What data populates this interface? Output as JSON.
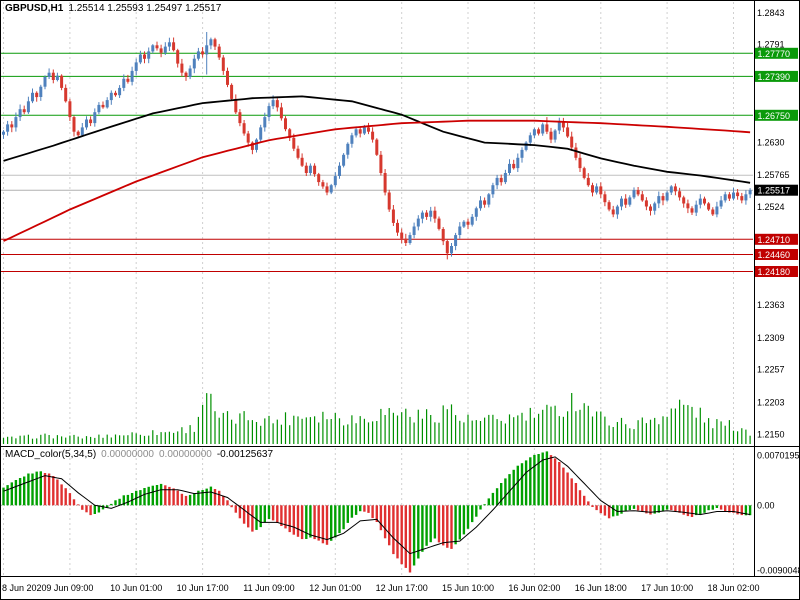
{
  "title": {
    "symbol": "GBPUSD,H1",
    "ohlc": "1.25514 1.25593 1.25497 1.25517"
  },
  "indicator": {
    "name": "MACD_color(5,34,5)",
    "values": [
      "0.00000000",
      "0.00000000",
      "-0.00125637"
    ]
  },
  "colors": {
    "up": "#4f81bd",
    "down": "#d6382e",
    "ma_fast": "#000000",
    "ma_slow": "#cc0000",
    "level_green": "#0a9a0a",
    "level_red": "#c00000",
    "bid_box": "#000000",
    "silver_line": "#c0c0c0",
    "current_line": "#b0b0b0",
    "volume": "#009000",
    "macd_up": "#00a000",
    "macd_down": "#e03030",
    "signal": "#000000",
    "grid": "#d0d0d0",
    "axis_text": "#000000"
  },
  "chart_data": {
    "type": "candlestick",
    "symbol": "GBPUSD",
    "timeframe": "H1",
    "title": "GBPUSD,H1 1.25514 1.25593 1.25497 1.25517",
    "legend_position": "top-left",
    "grid": "vertical-dashed",
    "x_axis": {
      "labels": [
        "8 Jun 2020",
        "9 Jun 09:00",
        "10 Jun 01:00",
        "10 Jun 17:00",
        "11 Jun 09:00",
        "12 Jun 01:00",
        "12 Jun 17:00",
        "15 Jun 10:00",
        "16 Jun 02:00",
        "16 Jun 18:00",
        "17 Jun 10:00",
        "18 Jun 02:00"
      ],
      "grid_indices": [
        0,
        16,
        32,
        48,
        64,
        80,
        96,
        112,
        128,
        144,
        160,
        176
      ]
    },
    "y_axis": {
      "range": [
        1.2136,
        1.2858
      ],
      "labels": [
        {
          "text": "1.2843",
          "price": 1.2843
        },
        {
          "text": "1.2791",
          "price": 1.2791
        },
        {
          "text": "1.2630",
          "price": 1.263
        },
        {
          "text": "1.25765",
          "price": 1.25765
        },
        {
          "text": "1.2524",
          "price": 1.2524
        },
        {
          "text": "1.2363",
          "price": 1.2363
        },
        {
          "text": "1.2309",
          "price": 1.2309
        },
        {
          "text": "1.2257",
          "price": 1.2257
        },
        {
          "text": "1.2203",
          "price": 1.2203
        },
        {
          "text": "1.2150",
          "price": 1.215
        }
      ]
    },
    "price_levels": {
      "green": [
        {
          "price": 1.2777,
          "label": "1.27770"
        },
        {
          "price": 1.2739,
          "label": "1.27390"
        },
        {
          "price": 1.2675,
          "label": "1.26750"
        }
      ],
      "red": [
        {
          "price": 1.2471,
          "label": "1.24710"
        },
        {
          "price": 1.2446,
          "label": "1.24460"
        },
        {
          "price": 1.2418,
          "label": "1.24180"
        }
      ],
      "bid": {
        "price": 1.25517,
        "label": "1.25517"
      },
      "silver": {
        "price": 1.25765,
        "label": "1.25765"
      }
    },
    "closes": [
      1.2648,
      1.266,
      1.2655,
      1.2672,
      1.2685,
      1.268,
      1.2698,
      1.2712,
      1.2705,
      1.2722,
      1.2738,
      1.2745,
      1.2733,
      1.274,
      1.272,
      1.2698,
      1.2672,
      1.2648,
      1.2642,
      1.2655,
      1.2668,
      1.2662,
      1.268,
      1.2692,
      1.2688,
      1.27,
      1.2712,
      1.2708,
      1.272,
      1.2735,
      1.273,
      1.2748,
      1.2762,
      1.2775,
      1.2768,
      1.278,
      1.279,
      1.2785,
      1.2778,
      1.2788,
      1.2795,
      1.2782,
      1.276,
      1.2745,
      1.2738,
      1.2752,
      1.2768,
      1.278,
      1.2775,
      1.279,
      1.28,
      1.2788,
      1.277,
      1.2748,
      1.2725,
      1.2702,
      1.268,
      1.2662,
      1.2645,
      1.263,
      1.2618,
      1.2635,
      1.2655,
      1.2672,
      1.269,
      1.27,
      1.2688,
      1.267,
      1.2652,
      1.2638,
      1.262,
      1.2605,
      1.2592,
      1.258,
      1.2592,
      1.2578,
      1.2565,
      1.2558,
      1.2548,
      1.256,
      1.2575,
      1.2592,
      1.261,
      1.2628,
      1.2642,
      1.2652,
      1.2645,
      1.2655,
      1.2648,
      1.2635,
      1.261,
      1.258,
      1.2548,
      1.252,
      1.2498,
      1.2482,
      1.2472,
      1.2465,
      1.2478,
      1.2492,
      1.2505,
      1.2515,
      1.2508,
      1.2518,
      1.2505,
      1.2488,
      1.2468,
      1.2448,
      1.246,
      1.2478,
      1.2492,
      1.25,
      1.2495,
      1.2508,
      1.2522,
      1.2535,
      1.2528,
      1.2545,
      1.256,
      1.2572,
      1.2565,
      1.258,
      1.2595,
      1.2588,
      1.2605,
      1.2618,
      1.263,
      1.2642,
      1.2652,
      1.2645,
      1.266,
      1.2648,
      1.2635,
      1.265,
      1.2665,
      1.2655,
      1.264,
      1.2622,
      1.2605,
      1.2588,
      1.2572,
      1.256,
      1.2548,
      1.2558,
      1.2545,
      1.2532,
      1.252,
      1.2512,
      1.2525,
      1.2538,
      1.2528,
      1.254,
      1.2552,
      1.2545,
      1.2535,
      1.2525,
      1.2518,
      1.253,
      1.2542,
      1.2535,
      1.2548,
      1.2558,
      1.255,
      1.254,
      1.253,
      1.2522,
      1.2515,
      1.2528,
      1.2538,
      1.253,
      1.252,
      1.2512,
      1.2525,
      1.2535,
      1.2545,
      1.2538,
      1.2548,
      1.2542,
      1.2535,
      1.2545,
      1.25517
    ],
    "wick_overrides": [
      [
        49,
        1.2812,
        1.2742
      ],
      [
        97,
        1.248,
        1.246
      ],
      [
        107,
        1.247,
        1.2438
      ],
      [
        131,
        1.2672,
        1.2644
      ]
    ],
    "ma_black": [
      [
        0,
        1.26
      ],
      [
        12,
        1.2625
      ],
      [
        24,
        1.2652
      ],
      [
        36,
        1.2678
      ],
      [
        48,
        1.2695
      ],
      [
        60,
        1.2703
      ],
      [
        72,
        1.2706
      ],
      [
        84,
        1.2698
      ],
      [
        96,
        1.2676
      ],
      [
        106,
        1.2648
      ],
      [
        116,
        1.263
      ],
      [
        128,
        1.2626
      ],
      [
        136,
        1.262
      ],
      [
        144,
        1.2604
      ],
      [
        152,
        1.2592
      ],
      [
        160,
        1.2582
      ],
      [
        168,
        1.2576
      ],
      [
        176,
        1.2568
      ],
      [
        180,
        1.2564
      ]
    ],
    "ma_red": [
      [
        0,
        1.2468
      ],
      [
        16,
        1.252
      ],
      [
        32,
        1.2566
      ],
      [
        48,
        1.2606
      ],
      [
        64,
        1.2634
      ],
      [
        80,
        1.2652
      ],
      [
        96,
        1.2662
      ],
      [
        112,
        1.2666
      ],
      [
        128,
        1.2666
      ],
      [
        144,
        1.2662
      ],
      [
        160,
        1.2656
      ],
      [
        176,
        1.2649
      ],
      [
        180,
        1.2647
      ]
    ],
    "volumes": [
      [
        0,
        0.1
      ],
      [
        10,
        0.15
      ],
      [
        20,
        0.12
      ],
      [
        30,
        0.18
      ],
      [
        40,
        0.22
      ],
      [
        46,
        0.3
      ],
      [
        49,
        1.0
      ],
      [
        51,
        0.5
      ],
      [
        55,
        0.45
      ],
      [
        60,
        0.5
      ],
      [
        65,
        0.42
      ],
      [
        70,
        0.5
      ],
      [
        75,
        0.55
      ],
      [
        80,
        0.5
      ],
      [
        85,
        0.45
      ],
      [
        90,
        0.55
      ],
      [
        95,
        0.6
      ],
      [
        100,
        0.5
      ],
      [
        105,
        0.55
      ],
      [
        107,
        0.7
      ],
      [
        110,
        0.45
      ],
      [
        115,
        0.4
      ],
      [
        120,
        0.45
      ],
      [
        125,
        0.5
      ],
      [
        130,
        0.55
      ],
      [
        134,
        0.6
      ],
      [
        137,
        0.8
      ],
      [
        140,
        0.75
      ],
      [
        143,
        0.5
      ],
      [
        148,
        0.4
      ],
      [
        152,
        0.35
      ],
      [
        156,
        0.45
      ],
      [
        160,
        0.55
      ],
      [
        163,
        0.7
      ],
      [
        166,
        0.65
      ],
      [
        170,
        0.4
      ],
      [
        174,
        0.35
      ],
      [
        178,
        0.3
      ],
      [
        180,
        0.2
      ]
    ],
    "macd": {
      "name": "MACD_color(5,34,5)",
      "range": [
        -0.0090048,
        0.0070195
      ],
      "y_labels": [
        {
          "text": "0.0070195",
          "value": 0.0070195
        },
        {
          "text": "0.00",
          "value": 0
        },
        {
          "text": "-0.0090048",
          "value": -0.0090048
        }
      ],
      "hist": [
        [
          0,
          0.0022
        ],
        [
          3,
          0.0032
        ],
        [
          6,
          0.004
        ],
        [
          9,
          0.0044
        ],
        [
          12,
          0.0038
        ],
        [
          15,
          0.0022
        ],
        [
          17,
          0.0008
        ],
        [
          19,
          -0.0006
        ],
        [
          21,
          -0.0012
        ],
        [
          23,
          -0.0009
        ],
        [
          25,
          -0.0002
        ],
        [
          27,
          0.0006
        ],
        [
          29,
          0.0012
        ],
        [
          32,
          0.0018
        ],
        [
          35,
          0.0024
        ],
        [
          38,
          0.0027
        ],
        [
          41,
          0.0022
        ],
        [
          44,
          0.0012
        ],
        [
          47,
          0.0018
        ],
        [
          50,
          0.0024
        ],
        [
          52,
          0.0018
        ],
        [
          54,
          0.0006
        ],
        [
          56,
          -0.001
        ],
        [
          58,
          -0.0024
        ],
        [
          60,
          -0.0034
        ],
        [
          62,
          -0.0028
        ],
        [
          64,
          -0.0018
        ],
        [
          66,
          -0.0022
        ],
        [
          68,
          -0.003
        ],
        [
          70,
          -0.0038
        ],
        [
          72,
          -0.0044
        ],
        [
          74,
          -0.0042
        ],
        [
          76,
          -0.0046
        ],
        [
          78,
          -0.005
        ],
        [
          80,
          -0.0042
        ],
        [
          82,
          -0.003
        ],
        [
          84,
          -0.0016
        ],
        [
          86,
          -0.0008
        ],
        [
          88,
          -0.001
        ],
        [
          90,
          -0.0022
        ],
        [
          92,
          -0.0042
        ],
        [
          94,
          -0.0062
        ],
        [
          96,
          -0.0075
        ],
        [
          98,
          -0.0086
        ],
        [
          100,
          -0.0068
        ],
        [
          102,
          -0.0052
        ],
        [
          104,
          -0.0042
        ],
        [
          106,
          -0.0052
        ],
        [
          108,
          -0.0056
        ],
        [
          110,
          -0.0044
        ],
        [
          112,
          -0.003
        ],
        [
          114,
          -0.0014
        ],
        [
          116,
          0.0002
        ],
        [
          118,
          0.0016
        ],
        [
          120,
          0.0028
        ],
        [
          122,
          0.004
        ],
        [
          124,
          0.005
        ],
        [
          126,
          0.0058
        ],
        [
          128,
          0.0064
        ],
        [
          130,
          0.0068
        ],
        [
          131,
          0.00695
        ],
        [
          132,
          0.0065
        ],
        [
          134,
          0.0055
        ],
        [
          136,
          0.0042
        ],
        [
          138,
          0.0028
        ],
        [
          140,
          0.0012
        ],
        [
          142,
          -0.0002
        ],
        [
          144,
          -0.001
        ],
        [
          146,
          -0.0016
        ],
        [
          148,
          -0.0013
        ],
        [
          150,
          -0.0008
        ],
        [
          152,
          -0.0004
        ],
        [
          154,
          -0.0008
        ],
        [
          156,
          -0.0012
        ],
        [
          158,
          -0.0009
        ],
        [
          160,
          -0.0005
        ],
        [
          162,
          -0.0008
        ],
        [
          164,
          -0.0012
        ],
        [
          166,
          -0.0015
        ],
        [
          168,
          -0.0011
        ],
        [
          170,
          -0.0007
        ],
        [
          172,
          -0.0004
        ],
        [
          174,
          -0.0007
        ],
        [
          176,
          -0.001
        ],
        [
          178,
          -0.0013
        ],
        [
          180,
          -0.00126
        ]
      ],
      "signal": [
        [
          0,
          0.0018
        ],
        [
          6,
          0.003
        ],
        [
          10,
          0.0038
        ],
        [
          14,
          0.0034
        ],
        [
          18,
          0.0016
        ],
        [
          22,
          0.0
        ],
        [
          26,
          -0.0004
        ],
        [
          30,
          0.0004
        ],
        [
          34,
          0.0014
        ],
        [
          38,
          0.002
        ],
        [
          42,
          0.002
        ],
        [
          46,
          0.0015
        ],
        [
          50,
          0.0017
        ],
        [
          54,
          0.001
        ],
        [
          58,
          -0.0006
        ],
        [
          62,
          -0.0022
        ],
        [
          66,
          -0.0022
        ],
        [
          70,
          -0.0028
        ],
        [
          74,
          -0.0038
        ],
        [
          78,
          -0.0044
        ],
        [
          82,
          -0.0036
        ],
        [
          86,
          -0.002
        ],
        [
          90,
          -0.0018
        ],
        [
          94,
          -0.0042
        ],
        [
          98,
          -0.0062
        ],
        [
          102,
          -0.0055
        ],
        [
          106,
          -0.0048
        ],
        [
          110,
          -0.0046
        ],
        [
          114,
          -0.0028
        ],
        [
          118,
          -0.0006
        ],
        [
          122,
          0.0018
        ],
        [
          126,
          0.0042
        ],
        [
          130,
          0.0058
        ],
        [
          133,
          0.0062
        ],
        [
          136,
          0.005
        ],
        [
          140,
          0.0028
        ],
        [
          144,
          0.0006
        ],
        [
          148,
          -0.0008
        ],
        [
          152,
          -0.0007
        ],
        [
          156,
          -0.0009
        ],
        [
          160,
          -0.0007
        ],
        [
          164,
          -0.0009
        ],
        [
          168,
          -0.0012
        ],
        [
          172,
          -0.0008
        ],
        [
          176,
          -0.0008
        ],
        [
          180,
          -0.0012
        ]
      ]
    }
  }
}
